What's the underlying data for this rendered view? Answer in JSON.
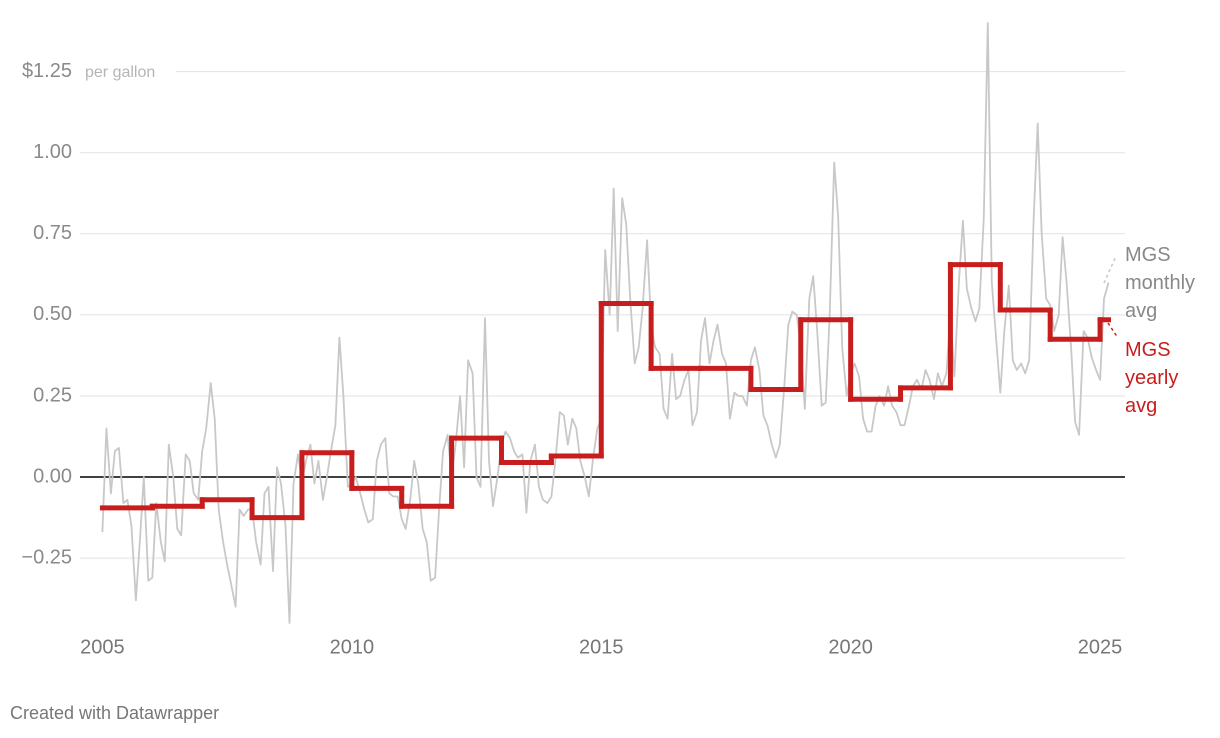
{
  "chart_data": {
    "type": "line",
    "annotation": "per gallon",
    "credit": "Created with Datawrapper",
    "xlim": [
      2004.45,
      2025.5
    ],
    "xticks": [
      2005,
      2010,
      2015,
      2020,
      2025
    ],
    "ylim": [
      -0.45,
      1.4
    ],
    "yticks": [
      {
        "value": -0.25,
        "label": "−0.25"
      },
      {
        "value": 0,
        "label": "0.00"
      },
      {
        "value": 0.25,
        "label": "0.25"
      },
      {
        "value": 0.5,
        "label": "0.50"
      },
      {
        "value": 0.75,
        "label": "0.75"
      },
      {
        "value": 1,
        "label": "1.00"
      },
      {
        "value": 1.25,
        "label": "$1.25"
      }
    ],
    "grid": true,
    "series": [
      {
        "name": "MGS monthly avg",
        "color": "#c8c8c8",
        "style": "line",
        "x": [
          2005,
          2005.08,
          2005.17,
          2005.25,
          2005.33,
          2005.42,
          2005.5,
          2005.58,
          2005.67,
          2005.75,
          2005.83,
          2005.92,
          2006,
          2006.08,
          2006.17,
          2006.25,
          2006.33,
          2006.42,
          2006.5,
          2006.58,
          2006.67,
          2006.75,
          2006.83,
          2006.92,
          2007,
          2007.08,
          2007.17,
          2007.25,
          2007.33,
          2007.42,
          2007.5,
          2007.58,
          2007.67,
          2007.75,
          2007.83,
          2007.92,
          2008,
          2008.08,
          2008.17,
          2008.25,
          2008.33,
          2008.42,
          2008.5,
          2008.58,
          2008.67,
          2008.75,
          2008.83,
          2008.92,
          2009,
          2009.08,
          2009.17,
          2009.25,
          2009.33,
          2009.42,
          2009.5,
          2009.58,
          2009.67,
          2009.75,
          2009.83,
          2009.92,
          2010,
          2010.08,
          2010.17,
          2010.25,
          2010.33,
          2010.42,
          2010.5,
          2010.58,
          2010.67,
          2010.75,
          2010.83,
          2010.92,
          2011,
          2011.08,
          2011.17,
          2011.25,
          2011.33,
          2011.42,
          2011.5,
          2011.58,
          2011.67,
          2011.75,
          2011.83,
          2011.92,
          2012,
          2012.08,
          2012.17,
          2012.25,
          2012.33,
          2012.42,
          2012.5,
          2012.58,
          2012.67,
          2012.75,
          2012.83,
          2012.92,
          2013,
          2013.08,
          2013.17,
          2013.25,
          2013.33,
          2013.42,
          2013.5,
          2013.58,
          2013.67,
          2013.75,
          2013.83,
          2013.92,
          2014,
          2014.08,
          2014.17,
          2014.25,
          2014.33,
          2014.42,
          2014.5,
          2014.58,
          2014.67,
          2014.75,
          2014.83,
          2014.92,
          2015,
          2015.08,
          2015.17,
          2015.25,
          2015.33,
          2015.42,
          2015.5,
          2015.58,
          2015.67,
          2015.75,
          2015.83,
          2015.92,
          2016,
          2016.08,
          2016.17,
          2016.25,
          2016.33,
          2016.42,
          2016.5,
          2016.58,
          2016.67,
          2016.75,
          2016.83,
          2016.92,
          2017,
          2017.08,
          2017.17,
          2017.25,
          2017.33,
          2017.42,
          2017.5,
          2017.58,
          2017.67,
          2017.75,
          2017.83,
          2017.92,
          2018,
          2018.08,
          2018.17,
          2018.25,
          2018.33,
          2018.42,
          2018.5,
          2018.58,
          2018.67,
          2018.75,
          2018.83,
          2018.92,
          2019,
          2019.08,
          2019.17,
          2019.25,
          2019.33,
          2019.42,
          2019.5,
          2019.58,
          2019.67,
          2019.75,
          2019.83,
          2019.92,
          2020,
          2020.08,
          2020.17,
          2020.25,
          2020.33,
          2020.42,
          2020.5,
          2020.58,
          2020.67,
          2020.75,
          2020.83,
          2020.92,
          2021,
          2021.08,
          2021.17,
          2021.25,
          2021.33,
          2021.42,
          2021.5,
          2021.58,
          2021.67,
          2021.75,
          2021.83,
          2021.92,
          2022,
          2022.08,
          2022.17,
          2022.25,
          2022.33,
          2022.42,
          2022.5,
          2022.58,
          2022.67,
          2022.75,
          2022.83,
          2022.92,
          2023,
          2023.08,
          2023.17,
          2023.25,
          2023.33,
          2023.42,
          2023.5,
          2023.58,
          2023.67,
          2023.75,
          2023.83,
          2023.92,
          2024,
          2024.08,
          2024.17,
          2024.25,
          2024.33,
          2024.42,
          2024.5,
          2024.58,
          2024.67,
          2024.75,
          2024.83,
          2024.92,
          2025,
          2025.08,
          2025.17
        ],
        "values": [
          -0.17,
          0.15,
          -0.05,
          0.08,
          0.09,
          -0.08,
          -0.07,
          -0.15,
          -0.38,
          -0.2,
          0.0,
          -0.32,
          -0.31,
          -0.08,
          -0.2,
          -0.26,
          0.1,
          0.0,
          -0.16,
          -0.18,
          0.07,
          0.05,
          -0.05,
          -0.07,
          0.08,
          0.15,
          0.29,
          0.18,
          -0.1,
          -0.2,
          -0.27,
          -0.33,
          -0.4,
          -0.1,
          -0.12,
          -0.1,
          -0.1,
          -0.2,
          -0.27,
          -0.05,
          -0.03,
          -0.29,
          0.03,
          -0.02,
          -0.15,
          -0.45,
          -0.02,
          0.07,
          -0.01,
          0.05,
          0.1,
          -0.02,
          0.05,
          -0.07,
          0.0,
          0.08,
          0.16,
          0.43,
          0.25,
          -0.03,
          -0.02,
          0.0,
          -0.05,
          -0.1,
          -0.14,
          -0.13,
          0.05,
          0.1,
          0.12,
          -0.05,
          -0.06,
          -0.06,
          -0.13,
          -0.16,
          -0.07,
          0.05,
          -0.02,
          -0.16,
          -0.2,
          -0.32,
          -0.31,
          -0.1,
          0.08,
          0.13,
          0.0,
          0.1,
          0.25,
          0.03,
          0.36,
          0.32,
          0.0,
          -0.03,
          0.49,
          0.05,
          -0.09,
          0.0,
          0.1,
          0.14,
          0.12,
          0.08,
          0.06,
          0.07,
          -0.11,
          0.05,
          0.1,
          -0.03,
          -0.07,
          -0.08,
          -0.06,
          0.05,
          0.2,
          0.19,
          0.1,
          0.18,
          0.15,
          0.05,
          0.0,
          -0.06,
          0.05,
          0.15,
          0.18,
          0.7,
          0.5,
          0.89,
          0.45,
          0.86,
          0.78,
          0.55,
          0.35,
          0.4,
          0.52,
          0.73,
          0.47,
          0.4,
          0.38,
          0.21,
          0.18,
          0.38,
          0.24,
          0.25,
          0.3,
          0.33,
          0.16,
          0.2,
          0.42,
          0.49,
          0.35,
          0.42,
          0.47,
          0.38,
          0.35,
          0.18,
          0.26,
          0.25,
          0.25,
          0.22,
          0.36,
          0.4,
          0.33,
          0.19,
          0.16,
          0.1,
          0.06,
          0.1,
          0.28,
          0.47,
          0.51,
          0.5,
          0.4,
          0.21,
          0.55,
          0.62,
          0.45,
          0.22,
          0.23,
          0.5,
          0.97,
          0.8,
          0.4,
          0.25,
          0.32,
          0.35,
          0.31,
          0.18,
          0.14,
          0.14,
          0.22,
          0.25,
          0.22,
          0.28,
          0.22,
          0.2,
          0.16,
          0.16,
          0.22,
          0.28,
          0.3,
          0.27,
          0.33,
          0.3,
          0.24,
          0.32,
          0.28,
          0.32,
          0.5,
          0.31,
          0.6,
          0.79,
          0.58,
          0.52,
          0.48,
          0.52,
          0.8,
          1.4,
          0.6,
          0.42,
          0.26,
          0.45,
          0.59,
          0.36,
          0.33,
          0.35,
          0.32,
          0.36,
          0.8,
          1.09,
          0.75,
          0.55,
          0.53,
          0.45,
          0.5,
          0.74,
          0.6,
          0.4,
          0.17,
          0.13,
          0.45,
          0.43,
          0.37,
          0.33,
          0.3,
          0.55,
          0.6
        ]
      },
      {
        "name": "MGS yearly avg",
        "color": "#c71e1d",
        "style": "step",
        "x": [
          2005,
          2006,
          2007,
          2008,
          2009,
          2010,
          2011,
          2012,
          2013,
          2014,
          2015,
          2016,
          2017,
          2018,
          2019,
          2020,
          2021,
          2022,
          2023,
          2024,
          2025
        ],
        "values": [
          -0.095,
          -0.09,
          -0.07,
          -0.125,
          0.075,
          -0.035,
          -0.09,
          0.12,
          0.045,
          0.065,
          0.535,
          0.335,
          0.335,
          0.27,
          0.485,
          0.24,
          0.275,
          0.655,
          0.515,
          0.425,
          0.485
        ]
      }
    ]
  }
}
